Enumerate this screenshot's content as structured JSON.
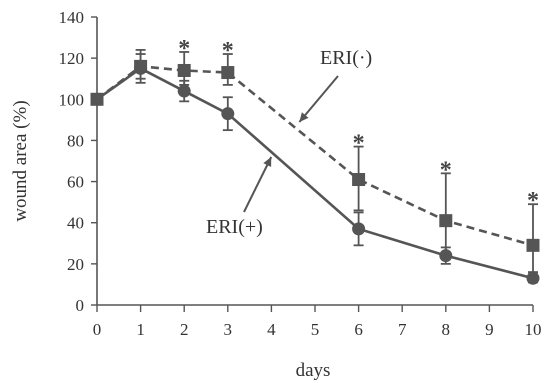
{
  "chart_data": {
    "type": "line",
    "xlabel": "days",
    "ylabel": "wound area (%)",
    "xlim": [
      0,
      10
    ],
    "ylim": [
      0,
      140
    ],
    "xticks": [
      0,
      1,
      2,
      3,
      4,
      5,
      6,
      7,
      8,
      9,
      10
    ],
    "yticks": [
      0,
      20,
      40,
      60,
      80,
      100,
      120,
      140
    ],
    "grid": false,
    "legend": "none",
    "series": [
      {
        "name": "ERI(·)",
        "style": "dashed",
        "marker": "square",
        "color": "#555555",
        "x": [
          0,
          1,
          2,
          3,
          6,
          8,
          10
        ],
        "y": [
          100,
          116,
          114,
          113,
          61,
          41,
          29
        ],
        "err_up": [
          0,
          8,
          9,
          9,
          16,
          23,
          20
        ],
        "err_down": [
          0,
          6,
          7,
          6,
          15,
          16,
          13
        ]
      },
      {
        "name": "ERI(+)",
        "style": "solid",
        "marker": "circle",
        "color": "#555555",
        "x": [
          0,
          1,
          2,
          3,
          6,
          8,
          10
        ],
        "y": [
          100,
          115,
          104,
          93,
          37,
          24,
          13
        ],
        "err_up": [
          0,
          7,
          5,
          8,
          8,
          4,
          2
        ],
        "err_down": [
          0,
          7,
          5,
          8,
          8,
          4,
          2
        ]
      }
    ],
    "significance": [
      {
        "x": 2,
        "label": "*"
      },
      {
        "x": 3,
        "label": "*"
      },
      {
        "x": 6,
        "label": "*"
      },
      {
        "x": 8,
        "label": "*"
      },
      {
        "x": 10,
        "label": "*"
      }
    ],
    "annotations": [
      {
        "text": "ERI(·)",
        "series": 0
      },
      {
        "text": "ERI(+)",
        "series": 1
      }
    ]
  }
}
